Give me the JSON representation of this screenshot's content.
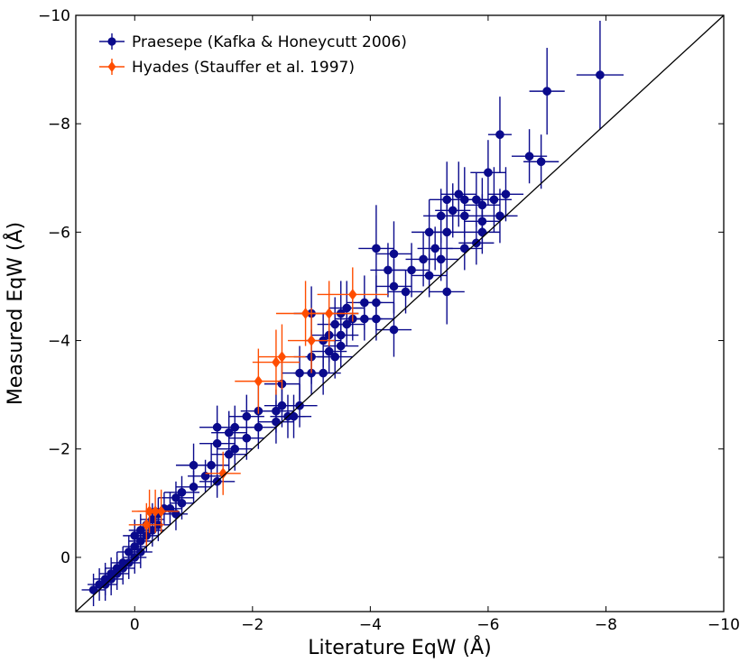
{
  "chart_data": {
    "type": "scatter",
    "title": "",
    "xlabel": "Literature EqW (Å)",
    "ylabel": "Measured EqW (Å)",
    "xlim": [
      1,
      -10
    ],
    "ylim": [
      1,
      -10
    ],
    "x_ticks": [
      0,
      -2,
      -4,
      -6,
      -8,
      -10
    ],
    "x_tick_labels": [
      "0",
      "−2",
      "−4",
      "−6",
      "−8",
      "−10"
    ],
    "y_ticks": [
      0,
      -2,
      -4,
      -6,
      -8,
      -10
    ],
    "y_tick_labels": [
      "0",
      "−2",
      "−4",
      "−6",
      "−8",
      "−10"
    ],
    "reference_line": {
      "label": "1:1",
      "from": [
        1,
        1
      ],
      "to": [
        -10,
        -10
      ]
    },
    "legend": {
      "position": "top-left"
    },
    "colors": {
      "praesepe": "#0a0a8c",
      "hyades": "#ff4d00",
      "reference": "#000000"
    },
    "series": [
      {
        "name": "Praesepe (Kafka & Honeycutt 2006)",
        "marker": "circle",
        "points": [
          [
            -7.9,
            -8.9,
            0.4,
            1.0
          ],
          [
            -7.0,
            -8.6,
            0.3,
            0.8
          ],
          [
            -6.2,
            -7.8,
            0.2,
            0.7
          ],
          [
            -6.7,
            -7.4,
            0.3,
            0.5
          ],
          [
            -6.9,
            -7.3,
            0.3,
            0.5
          ],
          [
            -6.0,
            -7.1,
            0.3,
            0.6
          ],
          [
            -6.3,
            -6.7,
            0.3,
            0.5
          ],
          [
            -6.1,
            -6.6,
            0.3,
            0.6
          ],
          [
            -5.9,
            -6.5,
            0.3,
            0.5
          ],
          [
            -5.8,
            -6.6,
            0.3,
            0.5
          ],
          [
            -5.6,
            -6.6,
            0.3,
            0.6
          ],
          [
            -5.5,
            -6.7,
            0.3,
            0.6
          ],
          [
            -5.3,
            -6.6,
            0.3,
            0.7
          ],
          [
            -5.4,
            -6.4,
            0.3,
            0.5
          ],
          [
            -5.2,
            -6.3,
            0.3,
            0.5
          ],
          [
            -5.6,
            -6.3,
            0.3,
            0.4
          ],
          [
            -5.9,
            -6.2,
            0.3,
            0.5
          ],
          [
            -6.2,
            -6.3,
            0.3,
            0.5
          ],
          [
            -5.9,
            -6.0,
            0.3,
            0.4
          ],
          [
            -5.8,
            -5.8,
            0.3,
            0.4
          ],
          [
            -5.6,
            -5.7,
            0.3,
            0.4
          ],
          [
            -5.3,
            -6.0,
            0.3,
            0.5
          ],
          [
            -5.0,
            -6.0,
            0.3,
            0.6
          ],
          [
            -5.1,
            -5.7,
            0.3,
            0.4
          ],
          [
            -5.2,
            -5.5,
            0.3,
            0.4
          ],
          [
            -4.9,
            -5.5,
            0.3,
            0.5
          ],
          [
            -4.7,
            -5.3,
            0.3,
            0.5
          ],
          [
            -5.0,
            -5.2,
            0.3,
            0.4
          ],
          [
            -4.4,
            -5.6,
            0.3,
            0.6
          ],
          [
            -4.3,
            -5.3,
            0.3,
            0.5
          ],
          [
            -4.1,
            -5.7,
            0.3,
            0.8
          ],
          [
            -4.4,
            -5.0,
            0.3,
            0.5
          ],
          [
            -4.6,
            -4.9,
            0.3,
            0.4
          ],
          [
            -5.3,
            -4.9,
            0.3,
            0.6
          ],
          [
            -4.1,
            -4.7,
            0.3,
            0.5
          ],
          [
            -3.9,
            -4.7,
            0.3,
            0.5
          ],
          [
            -3.6,
            -4.6,
            0.3,
            0.5
          ],
          [
            -3.7,
            -4.4,
            0.3,
            0.4
          ],
          [
            -3.9,
            -4.4,
            0.3,
            0.4
          ],
          [
            -4.1,
            -4.4,
            0.3,
            0.4
          ],
          [
            -4.4,
            -4.2,
            0.3,
            0.5
          ],
          [
            -3.5,
            -4.5,
            0.3,
            0.6
          ],
          [
            -3.4,
            -4.3,
            0.3,
            0.5
          ],
          [
            -3.3,
            -4.1,
            0.3,
            0.5
          ],
          [
            -3.5,
            -4.1,
            0.3,
            0.4
          ],
          [
            -3.6,
            -4.3,
            0.3,
            0.4
          ],
          [
            -3.0,
            -4.5,
            0.3,
            0.5
          ],
          [
            -3.2,
            -4.0,
            0.3,
            0.5
          ],
          [
            -3.0,
            -3.7,
            0.3,
            0.5
          ],
          [
            -3.4,
            -3.7,
            0.3,
            0.4
          ],
          [
            -3.5,
            -3.9,
            0.3,
            0.4
          ],
          [
            -3.3,
            -3.8,
            0.3,
            0.4
          ],
          [
            -3.2,
            -3.4,
            0.3,
            0.4
          ],
          [
            -2.8,
            -3.4,
            0.3,
            0.5
          ],
          [
            -3.0,
            -3.4,
            0.3,
            0.4
          ],
          [
            -2.5,
            -3.2,
            0.3,
            0.5
          ],
          [
            -2.5,
            -2.8,
            0.3,
            0.4
          ],
          [
            -2.8,
            -2.8,
            0.3,
            0.4
          ],
          [
            -2.4,
            -2.7,
            0.3,
            0.4
          ],
          [
            -2.6,
            -2.6,
            0.3,
            0.4
          ],
          [
            -2.4,
            -2.5,
            0.3,
            0.4
          ],
          [
            -2.7,
            -2.6,
            0.3,
            0.4
          ],
          [
            -2.1,
            -2.7,
            0.3,
            0.5
          ],
          [
            -2.1,
            -2.4,
            0.3,
            0.4
          ],
          [
            -1.9,
            -2.6,
            0.3,
            0.4
          ],
          [
            -1.9,
            -2.2,
            0.3,
            0.4
          ],
          [
            -1.7,
            -2.4,
            0.3,
            0.4
          ],
          [
            -1.6,
            -2.3,
            0.3,
            0.4
          ],
          [
            -1.4,
            -2.4,
            0.3,
            0.4
          ],
          [
            -1.4,
            -2.1,
            0.3,
            0.4
          ],
          [
            -1.7,
            -2.0,
            0.3,
            0.4
          ],
          [
            -1.6,
            -1.9,
            0.3,
            0.3
          ],
          [
            -1.3,
            -1.7,
            0.3,
            0.4
          ],
          [
            -1.0,
            -1.7,
            0.3,
            0.4
          ],
          [
            -1.2,
            -1.5,
            0.3,
            0.3
          ],
          [
            -1.4,
            -1.4,
            0.3,
            0.3
          ],
          [
            -1.0,
            -1.3,
            0.3,
            0.3
          ],
          [
            -0.8,
            -1.2,
            0.3,
            0.3
          ],
          [
            -0.7,
            -1.1,
            0.3,
            0.3
          ],
          [
            -0.8,
            -1.0,
            0.2,
            0.3
          ],
          [
            -0.6,
            -0.9,
            0.2,
            0.3
          ],
          [
            -0.7,
            -0.8,
            0.2,
            0.3
          ],
          [
            -0.5,
            -0.9,
            0.2,
            0.3
          ],
          [
            -0.4,
            -0.8,
            0.2,
            0.3
          ],
          [
            -0.3,
            -0.7,
            0.2,
            0.3
          ],
          [
            -0.4,
            -0.6,
            0.2,
            0.3
          ],
          [
            -0.2,
            -0.6,
            0.2,
            0.3
          ],
          [
            -0.3,
            -0.5,
            0.2,
            0.3
          ],
          [
            -0.1,
            -0.5,
            0.2,
            0.3
          ],
          [
            -0.2,
            -0.4,
            0.2,
            0.3
          ],
          [
            0.0,
            -0.4,
            0.2,
            0.3
          ],
          [
            -0.1,
            -0.3,
            0.2,
            0.3
          ],
          [
            0.0,
            -0.2,
            0.2,
            0.3
          ],
          [
            -0.1,
            -0.1,
            0.2,
            0.3
          ],
          [
            0.1,
            -0.1,
            0.2,
            0.3
          ],
          [
            0.0,
            0.0,
            0.2,
            0.3
          ],
          [
            0.1,
            0.1,
            0.2,
            0.3
          ],
          [
            0.2,
            0.1,
            0.2,
            0.3
          ],
          [
            0.2,
            0.2,
            0.2,
            0.3
          ],
          [
            0.3,
            0.2,
            0.2,
            0.3
          ],
          [
            0.3,
            0.3,
            0.2,
            0.3
          ],
          [
            0.4,
            0.3,
            0.2,
            0.3
          ],
          [
            0.4,
            0.4,
            0.2,
            0.3
          ],
          [
            0.5,
            0.4,
            0.2,
            0.3
          ],
          [
            0.5,
            0.5,
            0.2,
            0.3
          ],
          [
            0.6,
            0.5,
            0.2,
            0.3
          ],
          [
            0.7,
            0.6,
            0.2,
            0.3
          ]
        ]
      },
      {
        "name": "Hyades (Stauffer et al. 1997)",
        "marker": "diamond",
        "points": [
          [
            -3.7,
            -4.85,
            0.6,
            0.5
          ],
          [
            -3.3,
            -4.5,
            0.5,
            0.6
          ],
          [
            -2.9,
            -4.5,
            0.5,
            0.6
          ],
          [
            -3.0,
            -4.0,
            0.4,
            0.6
          ],
          [
            -2.5,
            -3.7,
            0.4,
            0.6
          ],
          [
            -2.4,
            -3.6,
            0.4,
            0.6
          ],
          [
            -2.1,
            -3.25,
            0.4,
            0.6
          ],
          [
            -1.5,
            -1.55,
            0.3,
            0.4
          ],
          [
            -0.45,
            -0.85,
            0.3,
            0.4
          ],
          [
            -0.35,
            -0.85,
            0.3,
            0.4
          ],
          [
            -0.25,
            -0.85,
            0.3,
            0.4
          ],
          [
            -0.2,
            -0.6,
            0.3,
            0.4
          ]
        ]
      }
    ]
  }
}
